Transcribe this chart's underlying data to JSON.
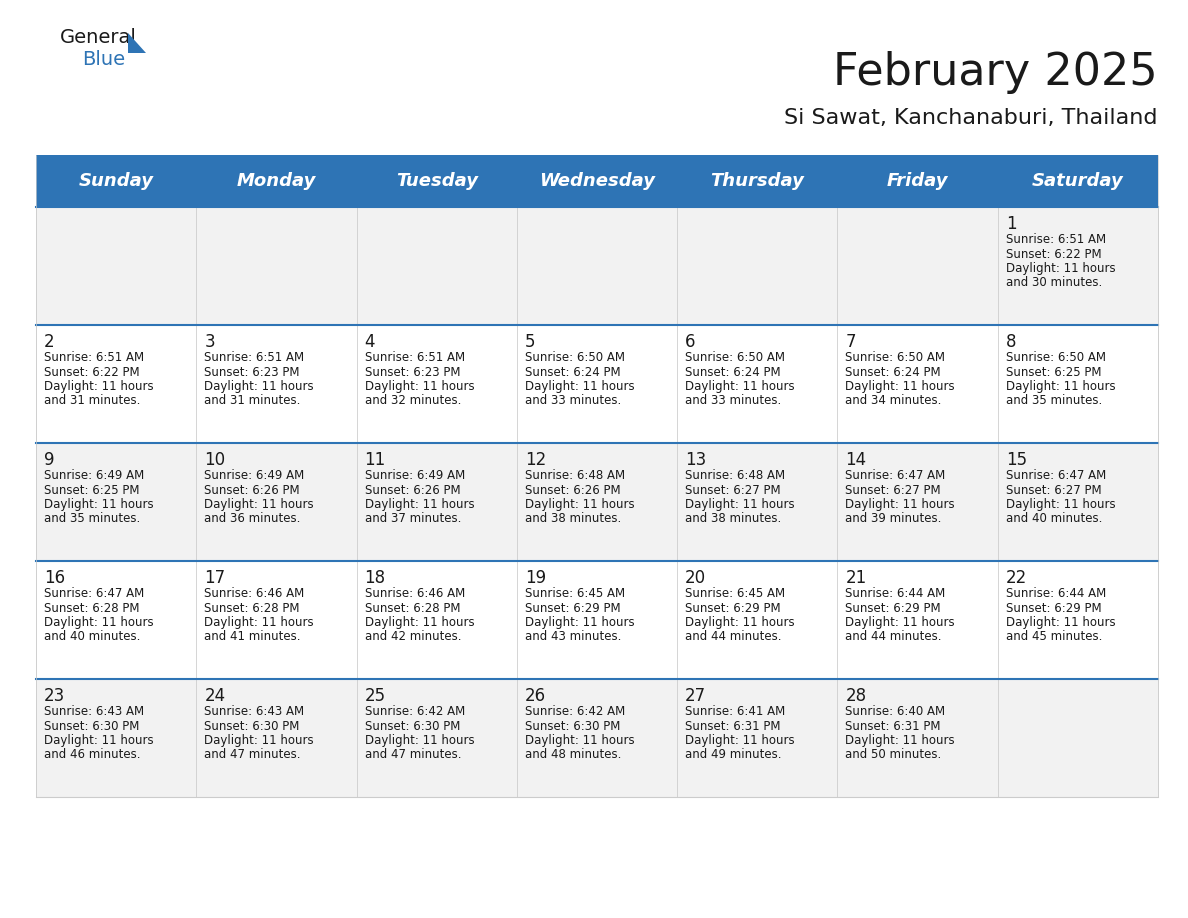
{
  "title": "February 2025",
  "subtitle": "Si Sawat, Kanchanaburi, Thailand",
  "header_color": "#2E74B5",
  "header_text_color": "#FFFFFF",
  "cell_bg_row0": "#F2F2F2",
  "cell_bg_row1": "#FFFFFF",
  "day_names": [
    "Sunday",
    "Monday",
    "Tuesday",
    "Wednesday",
    "Thursday",
    "Friday",
    "Saturday"
  ],
  "title_fontsize": 32,
  "subtitle_fontsize": 16,
  "day_header_fontsize": 13,
  "day_number_fontsize": 12,
  "cell_text_fontsize": 8.5,
  "logo_general_fontsize": 14,
  "logo_blue_fontsize": 14,
  "calendar": [
    [
      null,
      null,
      null,
      null,
      null,
      null,
      {
        "day": "1",
        "sunrise": "6:51 AM",
        "sunset": "6:22 PM",
        "daylight_h": "11 hours",
        "daylight_m": "30 minutes."
      }
    ],
    [
      {
        "day": "2",
        "sunrise": "6:51 AM",
        "sunset": "6:22 PM",
        "daylight_h": "11 hours",
        "daylight_m": "31 minutes."
      },
      {
        "day": "3",
        "sunrise": "6:51 AM",
        "sunset": "6:23 PM",
        "daylight_h": "11 hours",
        "daylight_m": "31 minutes."
      },
      {
        "day": "4",
        "sunrise": "6:51 AM",
        "sunset": "6:23 PM",
        "daylight_h": "11 hours",
        "daylight_m": "32 minutes."
      },
      {
        "day": "5",
        "sunrise": "6:50 AM",
        "sunset": "6:24 PM",
        "daylight_h": "11 hours",
        "daylight_m": "33 minutes."
      },
      {
        "day": "6",
        "sunrise": "6:50 AM",
        "sunset": "6:24 PM",
        "daylight_h": "11 hours",
        "daylight_m": "33 minutes."
      },
      {
        "day": "7",
        "sunrise": "6:50 AM",
        "sunset": "6:24 PM",
        "daylight_h": "11 hours",
        "daylight_m": "34 minutes."
      },
      {
        "day": "8",
        "sunrise": "6:50 AM",
        "sunset": "6:25 PM",
        "daylight_h": "11 hours",
        "daylight_m": "35 minutes."
      }
    ],
    [
      {
        "day": "9",
        "sunrise": "6:49 AM",
        "sunset": "6:25 PM",
        "daylight_h": "11 hours",
        "daylight_m": "35 minutes."
      },
      {
        "day": "10",
        "sunrise": "6:49 AM",
        "sunset": "6:26 PM",
        "daylight_h": "11 hours",
        "daylight_m": "36 minutes."
      },
      {
        "day": "11",
        "sunrise": "6:49 AM",
        "sunset": "6:26 PM",
        "daylight_h": "11 hours",
        "daylight_m": "37 minutes."
      },
      {
        "day": "12",
        "sunrise": "6:48 AM",
        "sunset": "6:26 PM",
        "daylight_h": "11 hours",
        "daylight_m": "38 minutes."
      },
      {
        "day": "13",
        "sunrise": "6:48 AM",
        "sunset": "6:27 PM",
        "daylight_h": "11 hours",
        "daylight_m": "38 minutes."
      },
      {
        "day": "14",
        "sunrise": "6:47 AM",
        "sunset": "6:27 PM",
        "daylight_h": "11 hours",
        "daylight_m": "39 minutes."
      },
      {
        "day": "15",
        "sunrise": "6:47 AM",
        "sunset": "6:27 PM",
        "daylight_h": "11 hours",
        "daylight_m": "40 minutes."
      }
    ],
    [
      {
        "day": "16",
        "sunrise": "6:47 AM",
        "sunset": "6:28 PM",
        "daylight_h": "11 hours",
        "daylight_m": "40 minutes."
      },
      {
        "day": "17",
        "sunrise": "6:46 AM",
        "sunset": "6:28 PM",
        "daylight_h": "11 hours",
        "daylight_m": "41 minutes."
      },
      {
        "day": "18",
        "sunrise": "6:46 AM",
        "sunset": "6:28 PM",
        "daylight_h": "11 hours",
        "daylight_m": "42 minutes."
      },
      {
        "day": "19",
        "sunrise": "6:45 AM",
        "sunset": "6:29 PM",
        "daylight_h": "11 hours",
        "daylight_m": "43 minutes."
      },
      {
        "day": "20",
        "sunrise": "6:45 AM",
        "sunset": "6:29 PM",
        "daylight_h": "11 hours",
        "daylight_m": "44 minutes."
      },
      {
        "day": "21",
        "sunrise": "6:44 AM",
        "sunset": "6:29 PM",
        "daylight_h": "11 hours",
        "daylight_m": "44 minutes."
      },
      {
        "day": "22",
        "sunrise": "6:44 AM",
        "sunset": "6:29 PM",
        "daylight_h": "11 hours",
        "daylight_m": "45 minutes."
      }
    ],
    [
      {
        "day": "23",
        "sunrise": "6:43 AM",
        "sunset": "6:30 PM",
        "daylight_h": "11 hours",
        "daylight_m": "46 minutes."
      },
      {
        "day": "24",
        "sunrise": "6:43 AM",
        "sunset": "6:30 PM",
        "daylight_h": "11 hours",
        "daylight_m": "47 minutes."
      },
      {
        "day": "25",
        "sunrise": "6:42 AM",
        "sunset": "6:30 PM",
        "daylight_h": "11 hours",
        "daylight_m": "47 minutes."
      },
      {
        "day": "26",
        "sunrise": "6:42 AM",
        "sunset": "6:30 PM",
        "daylight_h": "11 hours",
        "daylight_m": "48 minutes."
      },
      {
        "day": "27",
        "sunrise": "6:41 AM",
        "sunset": "6:31 PM",
        "daylight_h": "11 hours",
        "daylight_m": "49 minutes."
      },
      {
        "day": "28",
        "sunrise": "6:40 AM",
        "sunset": "6:31 PM",
        "daylight_h": "11 hours",
        "daylight_m": "50 minutes."
      },
      null
    ]
  ]
}
